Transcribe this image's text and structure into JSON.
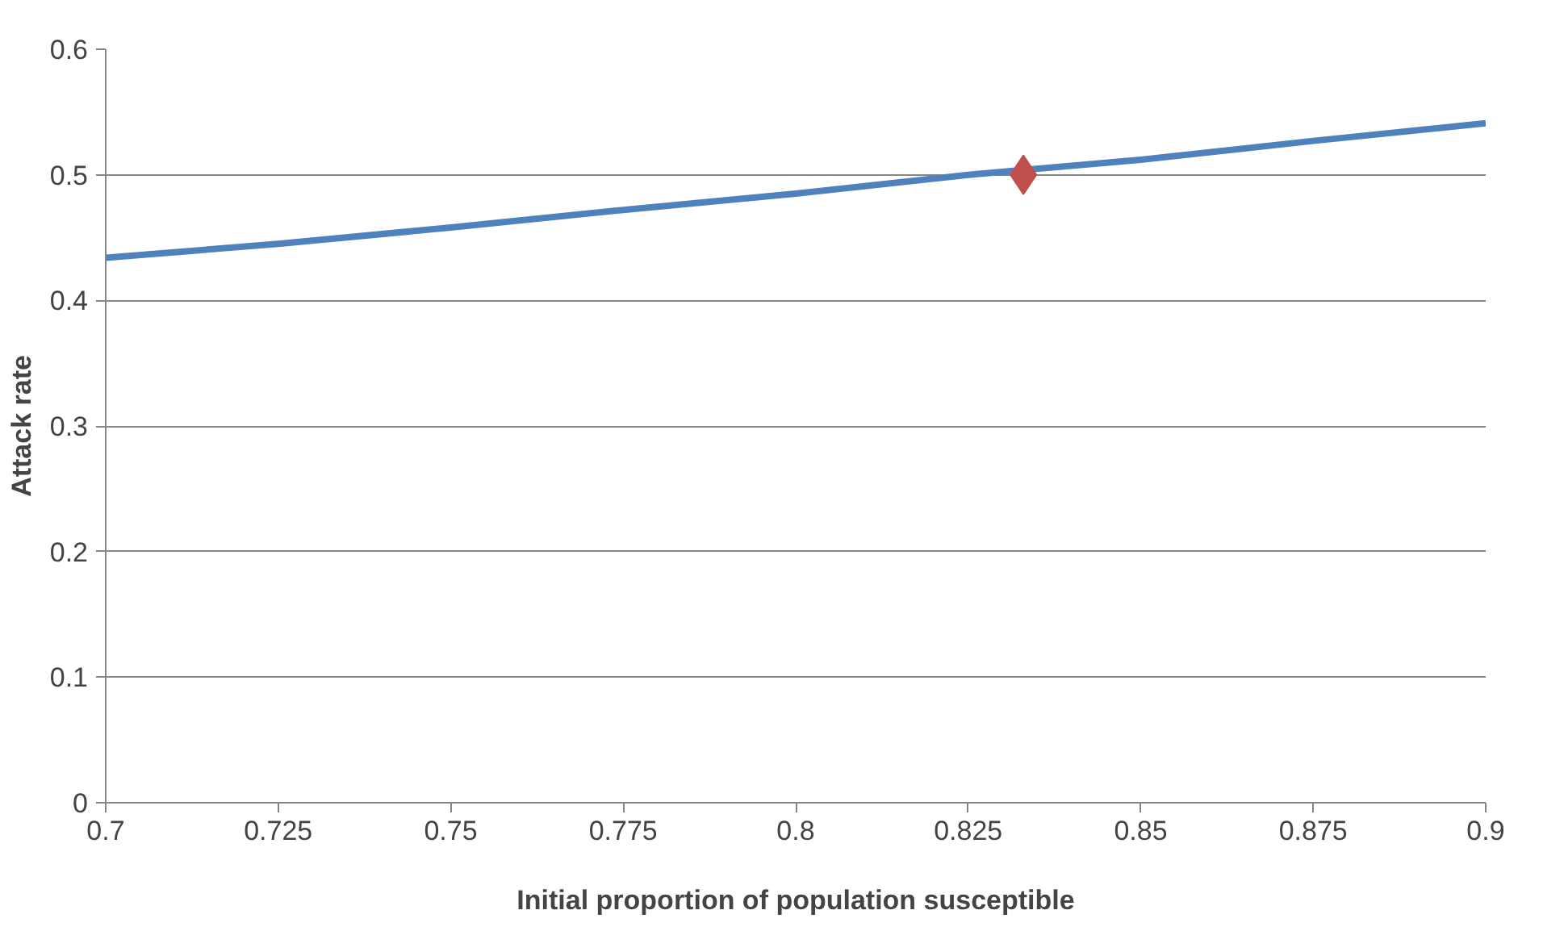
{
  "chart_data": {
    "type": "line",
    "xlabel": "Initial proportion of population susceptible",
    "ylabel": "Attack rate",
    "xlim": [
      0.7,
      0.9
    ],
    "xticks": [
      0.7,
      0.725,
      0.75,
      0.775,
      0.8,
      0.825,
      0.85,
      0.875,
      0.9
    ],
    "ylim": [
      0,
      0.6
    ],
    "yticks": [
      0,
      0.1,
      0.2,
      0.3,
      0.4,
      0.5,
      0.6
    ],
    "grid": "y",
    "series": [
      {
        "color": "#4f81bd",
        "marker": "none",
        "x": [
          0.7,
          0.725,
          0.75,
          0.775,
          0.8,
          0.825,
          0.85,
          0.875,
          0.9
        ],
        "values": [
          0.434,
          0.445,
          0.458,
          0.472,
          0.485,
          0.5,
          0.512,
          0.527,
          0.541
        ]
      },
      {
        "type": "scatter",
        "color": "#c0504d",
        "marker": "diamond",
        "x": [
          0.833
        ],
        "values": [
          0.5
        ]
      }
    ]
  }
}
